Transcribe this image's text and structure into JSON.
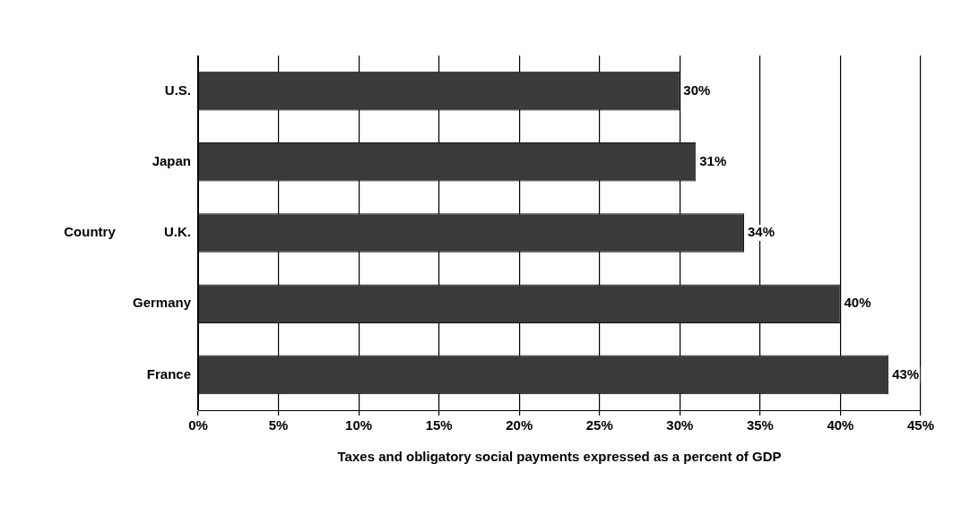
{
  "chart_data": {
    "type": "bar",
    "orientation": "horizontal",
    "categories": [
      "U.S.",
      "Japan",
      "U.K.",
      "Germany",
      "France"
    ],
    "values": [
      30,
      31,
      34,
      40,
      43
    ],
    "color": "#3a3a3a",
    "value_labels": [
      "30%",
      "31%",
      "34%",
      "40%",
      "43%"
    ],
    "xlim": [
      0,
      45
    ],
    "xticks": [
      {
        "value": 0,
        "label": "0%"
      },
      {
        "value": 5,
        "label": "5%"
      },
      {
        "value": 10,
        "label": "10%"
      },
      {
        "value": 15,
        "label": "15%"
      },
      {
        "value": 20,
        "label": "20%"
      },
      {
        "value": 25,
        "label": "25%"
      },
      {
        "value": 30,
        "label": "30%"
      },
      {
        "value": 35,
        "label": "35%"
      },
      {
        "value": 40,
        "label": "40%"
      },
      {
        "value": 45,
        "label": "45%"
      }
    ],
    "xlabel": "Taxes and obligatory social payments expressed as a percent of GDP",
    "ylabel": "Country",
    "grid": "x",
    "legend": false
  }
}
